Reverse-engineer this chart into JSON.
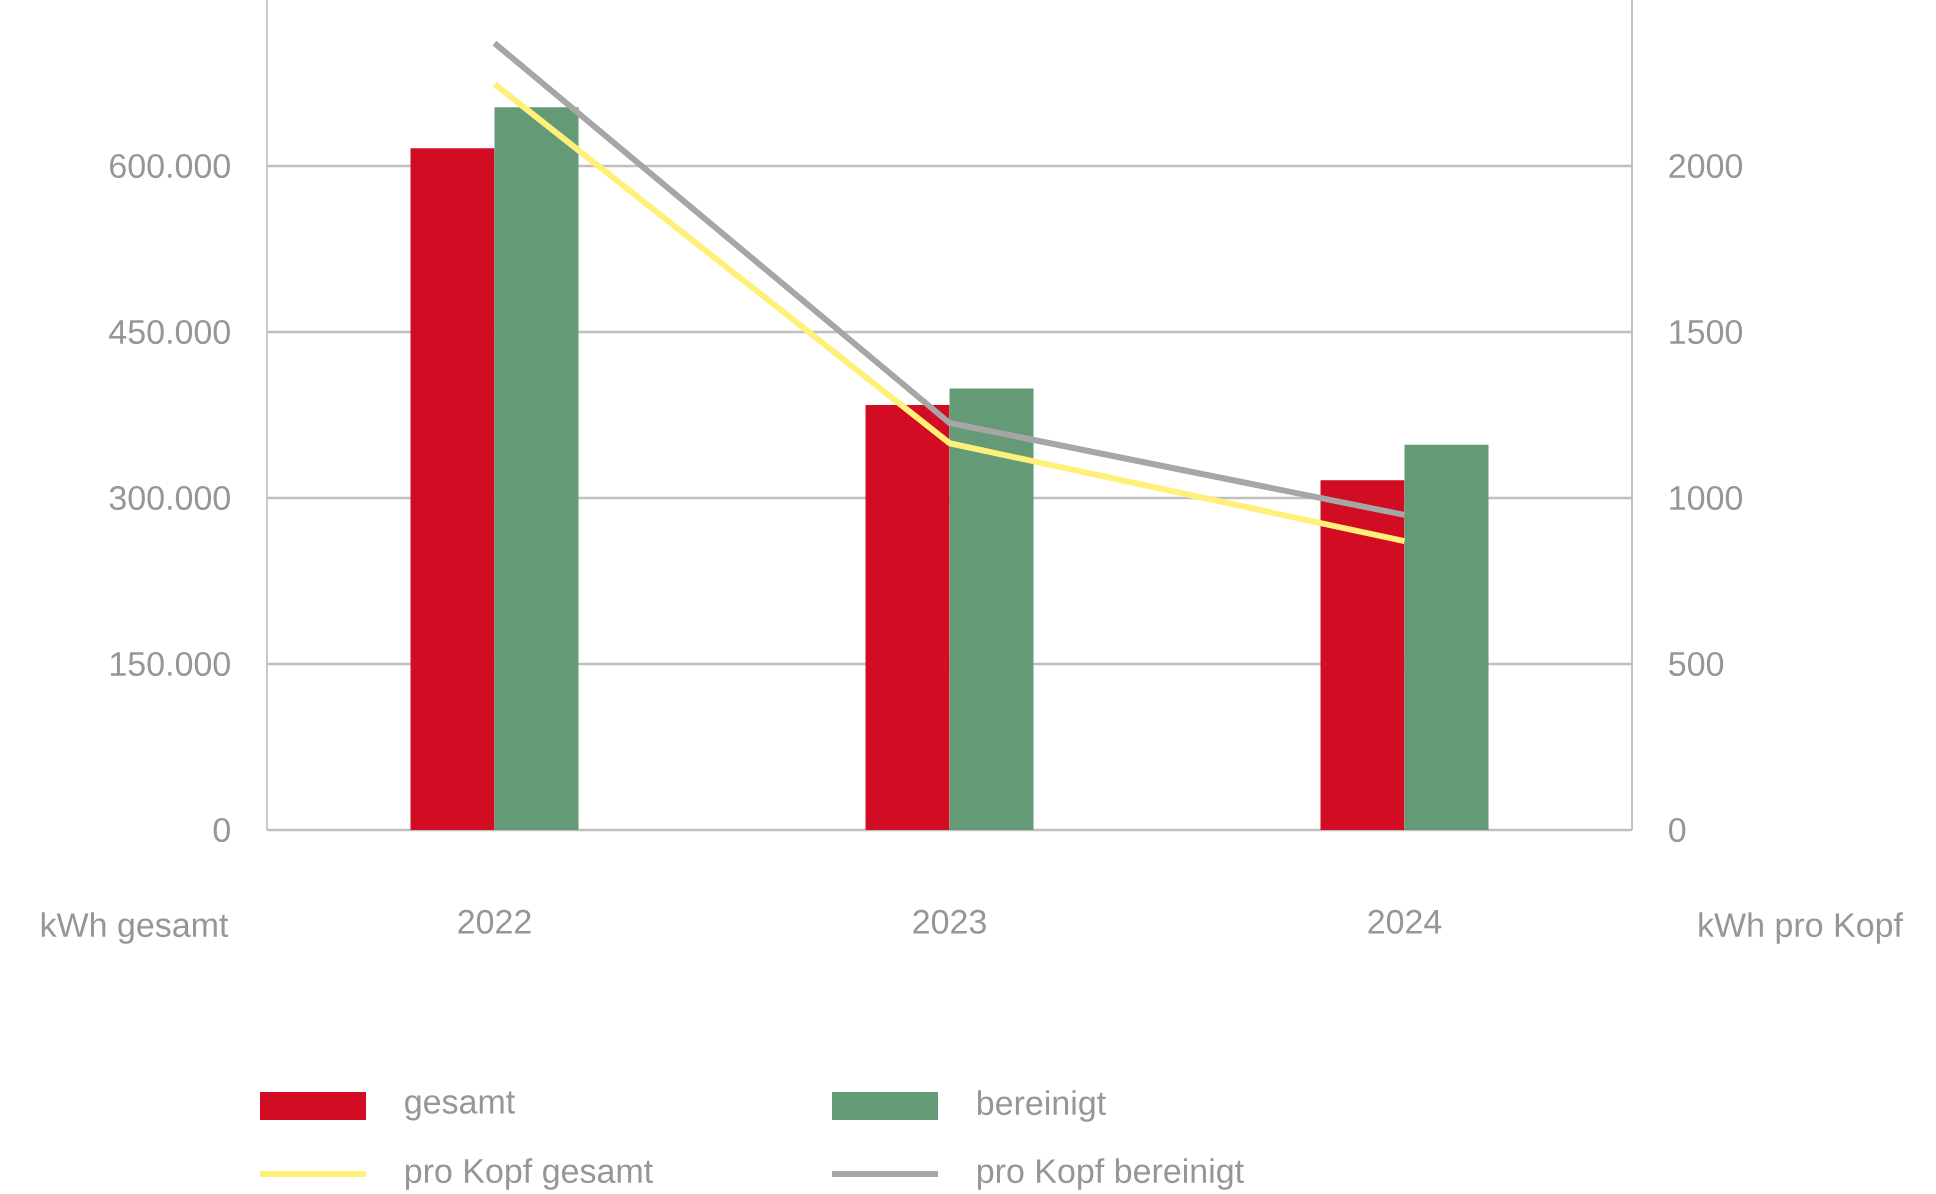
{
  "chart_data": {
    "type": "bar",
    "categories": [
      "2022",
      "2023",
      "2024"
    ],
    "series": [
      {
        "name": "gesamt",
        "color": "#d20c22",
        "values": [
          616000,
          384000,
          316000
        ]
      },
      {
        "name": "bereinigt",
        "color": "#659a77",
        "values": [
          653000,
          399000,
          348000
        ]
      },
      {
        "name": "pro Kopf gesamt",
        "type": "line",
        "axis": "y2",
        "color": "#fff07a",
        "values": [
          2247,
          1165,
          870
        ]
      },
      {
        "name": "pro Kopf bereinigt",
        "type": "line",
        "axis": "y2",
        "color": "#a6a6a6",
        "values": [
          2370,
          1226,
          949
        ]
      }
    ],
    "ylabel": "kWh gesamt",
    "y2label": "kWh pro Kopf",
    "ylim": [
      0,
      750000
    ],
    "yticks": [
      0,
      {
        "value": 150000,
        "label": "150.000"
      },
      {
        "value": 300000,
        "label": "300.000"
      },
      {
        "value": 450000,
        "label": "450.000"
      },
      {
        "value": 600000,
        "label": "600.000"
      }
    ],
    "y2lim": [
      0,
      2500
    ],
    "y2ticks": [
      0,
      500,
      1000,
      1500,
      2000
    ],
    "grid": "y",
    "legend": "bottom",
    "marker": "none",
    "line_style": "solid"
  }
}
